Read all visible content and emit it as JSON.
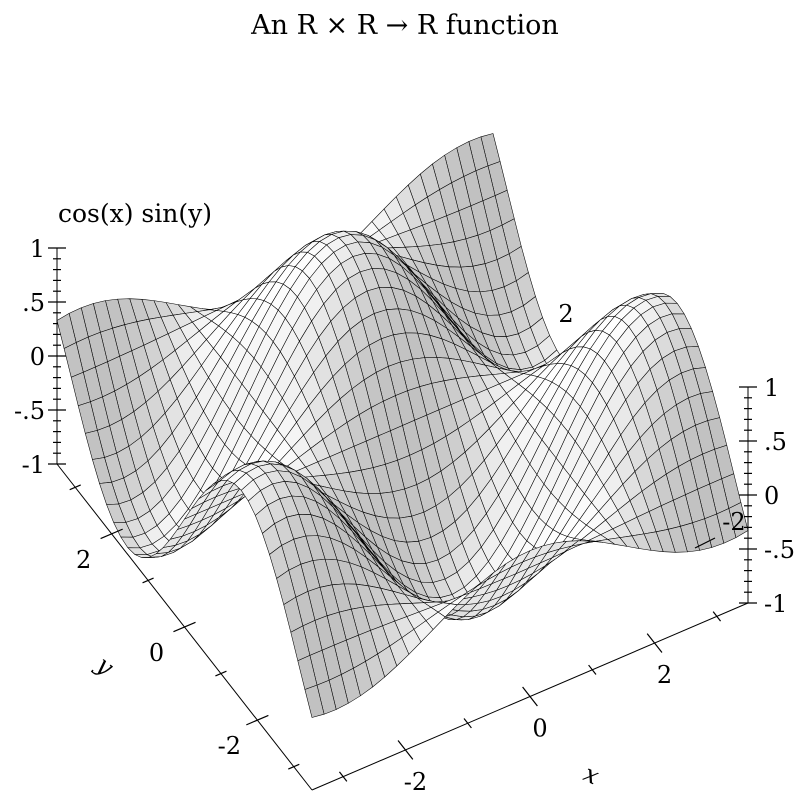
{
  "chart_data": {
    "type": "surface",
    "title": "An R × R → R function",
    "function_label": "cos(x) sin(y)",
    "xlabel": "x",
    "ylabel": "y",
    "xlim": [
      -3.5,
      3.5
    ],
    "ylim": [
      -3.5,
      3.5
    ],
    "zlim": [
      -1,
      1
    ],
    "x_ticks": [
      {
        "value": -2,
        "label": "-2"
      },
      {
        "value": 0,
        "label": "0"
      },
      {
        "value": 2,
        "label": "2"
      }
    ],
    "y_ticks": [
      {
        "value": -2,
        "label": "-2"
      },
      {
        "value": 0,
        "label": "0"
      },
      {
        "value": 2,
        "label": "2"
      }
    ],
    "z_ticks": [
      {
        "value": -1,
        "label": "-1"
      },
      {
        "value": -0.5,
        "label": "-.5"
      },
      {
        "value": 0,
        "label": "0"
      },
      {
        "value": 0.5,
        "label": ".5"
      },
      {
        "value": 1,
        "label": "1"
      }
    ],
    "surface_color": "#ffffff",
    "line_color": "#000000"
  }
}
